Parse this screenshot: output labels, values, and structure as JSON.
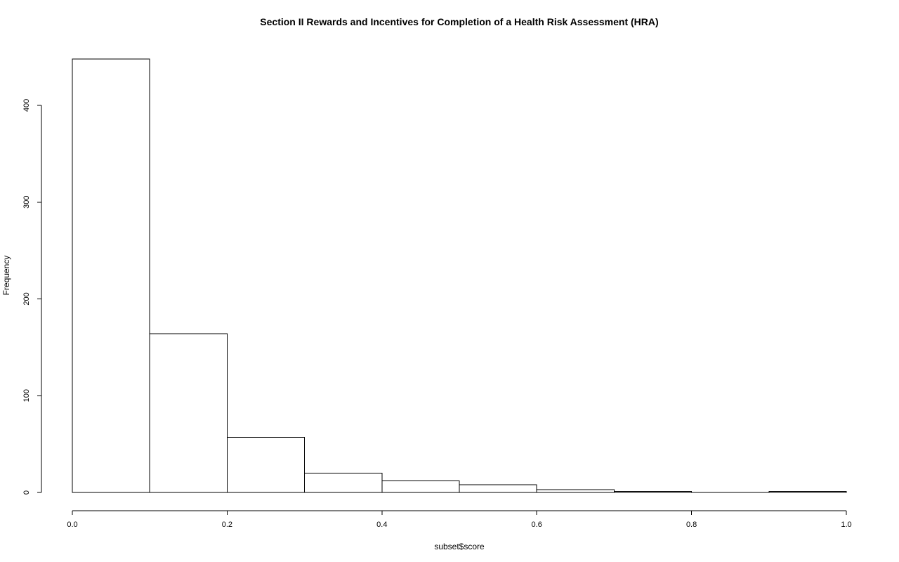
{
  "chart_data": {
    "type": "bar",
    "subtype": "histogram",
    "title": "Section II Rewards and Incentives for Completion of a Health Risk Assessment (HRA)",
    "xlabel": "subset$score",
    "ylabel": "Frequency",
    "bin_edges": [
      0.0,
      0.1,
      0.2,
      0.3,
      0.4,
      0.5,
      0.6,
      0.7,
      0.8,
      0.9,
      1.0
    ],
    "values": [
      448,
      164,
      57,
      20,
      12,
      8,
      3,
      1,
      0,
      1
    ],
    "xlim": [
      0,
      1
    ],
    "ylim": [
      0,
      448
    ],
    "xticks": [
      "0.0",
      "0.2",
      "0.4",
      "0.6",
      "0.8",
      "1.0"
    ],
    "xtick_values": [
      0,
      0.2,
      0.4,
      0.6,
      0.8,
      1.0
    ],
    "yticks": [
      "0",
      "100",
      "200",
      "300",
      "400"
    ],
    "ytick_values": [
      0,
      100,
      200,
      300,
      400
    ],
    "bar_fill": "#ffffff",
    "bar_stroke": "#000000",
    "grid": false,
    "legend": "none"
  }
}
